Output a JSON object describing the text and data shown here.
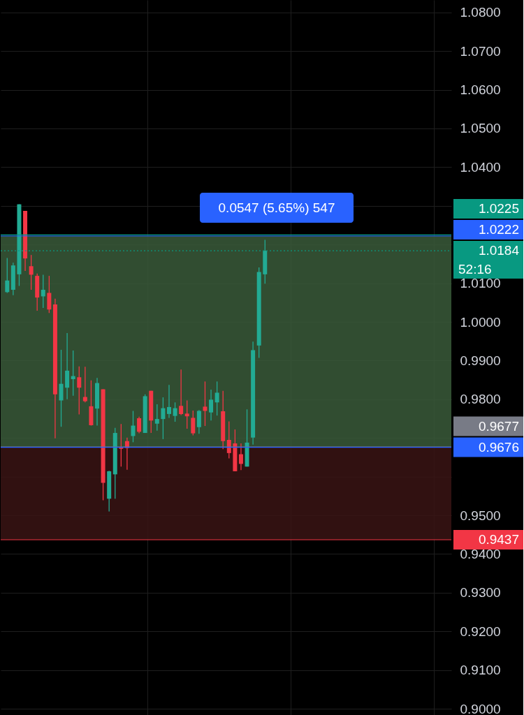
{
  "chart_data": {
    "type": "candlestick",
    "categories": [
      null,
      null,
      null,
      null,
      null,
      null,
      null,
      null,
      null,
      null,
      null,
      null,
      null,
      null,
      null,
      null,
      null,
      null,
      null,
      null,
      null,
      null,
      null,
      null,
      null,
      null,
      null,
      null,
      null,
      null,
      null,
      null,
      null,
      null,
      null,
      null,
      null,
      null,
      null,
      null,
      null,
      null,
      null,
      null,
      null,
      null,
      null,
      null,
      null,
      null,
      null,
      null,
      null,
      null,
      null,
      null,
      null,
      null,
      null,
      null,
      null,
      null,
      null,
      null,
      null,
      null,
      null,
      null,
      null,
      null,
      null,
      null,
      null,
      null
    ],
    "ohlc": [
      [
        1.0077,
        1.0165,
        1.0075,
        1.0107
      ],
      [
        1.0083,
        1.0153,
        1.0069,
        1.0146
      ],
      [
        1.0123,
        1.0304,
        1.0093,
        1.0304
      ],
      [
        1.0287,
        1.0287,
        1.0132,
        1.0164
      ],
      [
        1.0144,
        1.0173,
        1.0083,
        1.0122
      ],
      [
        1.0119,
        1.0125,
        1.0029,
        1.0063
      ],
      [
        1.0066,
        1.0122,
        1.0036,
        1.0083
      ],
      [
        1.0075,
        1.0119,
        1.0023,
        1.0032
      ],
      [
        1.0045,
        1.006,
        0.9699,
        0.9813
      ],
      [
        0.9797,
        0.9928,
        0.9729,
        0.984
      ],
      [
        0.983,
        0.9971,
        0.98,
        0.9874
      ],
      [
        0.9852,
        0.9926,
        0.9809,
        0.986
      ],
      [
        0.9857,
        0.9885,
        0.9761,
        0.983
      ],
      [
        0.9806,
        0.9884,
        0.9792,
        0.9795
      ],
      [
        0.9782,
        0.9849,
        0.9732,
        0.9733
      ],
      [
        0.9776,
        0.9855,
        0.9732,
        0.9842
      ],
      [
        0.9826,
        0.9826,
        0.9539,
        0.9584
      ],
      [
        0.9543,
        0.9615,
        0.951,
        0.9614
      ],
      [
        0.9606,
        0.9726,
        0.9543,
        0.9713
      ],
      [
        0.9675,
        0.9736,
        0.9626,
        0.9672
      ],
      [
        0.9692,
        0.9701,
        0.9618,
        0.9674
      ],
      [
        0.9705,
        0.977,
        0.9689,
        0.9732
      ],
      [
        0.9751,
        0.9755,
        0.9712,
        0.9716
      ],
      [
        0.9713,
        0.9813,
        0.9713,
        0.9808
      ],
      [
        0.9822,
        0.9822,
        0.9713,
        0.9745
      ],
      [
        0.9737,
        0.9787,
        0.9719,
        0.9749
      ],
      [
        0.9749,
        0.9805,
        0.9697,
        0.9777
      ],
      [
        0.9762,
        0.9837,
        0.9752,
        0.978
      ],
      [
        0.9757,
        0.9792,
        0.9742,
        0.9777
      ],
      [
        0.9783,
        0.9877,
        0.9759,
        0.9762
      ],
      [
        0.9763,
        0.9797,
        0.9724,
        0.9756
      ],
      [
        0.9752,
        0.9771,
        0.9707,
        0.9712
      ],
      [
        0.9728,
        0.9772,
        0.9711,
        0.977
      ],
      [
        0.9781,
        0.9846,
        0.9731,
        0.977
      ],
      [
        0.9766,
        0.9825,
        0.9745,
        0.9799
      ],
      [
        0.9792,
        0.9846,
        0.9758,
        0.9817
      ],
      [
        0.9769,
        0.9822,
        0.9671,
        0.9692
      ],
      [
        0.9695,
        0.9743,
        0.9647,
        0.9661
      ],
      [
        0.9686,
        0.9722,
        0.9614,
        0.9614
      ],
      [
        0.9658,
        0.9686,
        0.9617,
        0.9633
      ],
      [
        0.9626,
        0.9774,
        0.9626,
        0.9688
      ],
      [
        0.9701,
        0.9949,
        0.9683,
        0.9927
      ],
      [
        0.9939,
        1.0141,
        0.9907,
        1.0129
      ],
      [
        1.0123,
        1.0212,
        1.0099,
        1.0184
      ],
      null,
      null,
      null,
      null,
      null,
      null,
      null,
      null,
      null,
      null,
      null,
      null,
      null,
      null,
      null,
      null,
      null,
      null,
      null,
      null,
      null,
      null,
      null,
      null,
      null,
      null,
      null,
      null,
      null,
      null
    ],
    "colors": [
      "#22ab94",
      "#22ab94",
      "#22ab94",
      "#f23645",
      "#f23645",
      "#f23645",
      "#22ab94",
      "#f23645",
      "#f23645",
      "#22ab94",
      "#22ab94",
      "#22ab94",
      "#f23645",
      "#f23645",
      "#f23645",
      "#22ab94",
      "#f23645",
      "#22ab94",
      "#22ab94",
      "#f23645",
      "#f23645",
      "#22ab94",
      "#f23645",
      "#22ab94",
      "#f23645",
      "#22ab94",
      "#22ab94",
      "#22ab94",
      "#22ab94",
      "#f23645",
      "#f23645",
      "#f23645",
      "#22ab94",
      "#f23645",
      "#22ab94",
      "#22ab94",
      "#f23645",
      "#f23645",
      "#f23645",
      "#f23645",
      "#22ab94",
      "#22ab94",
      "#22ab94",
      "#22ab94",
      null,
      null,
      null,
      null,
      null,
      null,
      null,
      null,
      null,
      null,
      null,
      null,
      null,
      null,
      null,
      null,
      null,
      null,
      null,
      null,
      null,
      null,
      null,
      null,
      null,
      null,
      null,
      null,
      null,
      null
    ],
    "ylim": [
      0.8984,
      1.0832
    ],
    "yticks": [
      {
        "value": 0.9,
        "label": "0.9000"
      },
      {
        "value": 0.91,
        "label": "0.9100"
      },
      {
        "value": 0.92,
        "label": "0.9200"
      },
      {
        "value": 0.93,
        "label": "0.9300"
      },
      {
        "value": 0.94,
        "label": "0.9400"
      },
      {
        "value": 0.95,
        "label": "0.9500"
      },
      {
        "value": 0.96,
        "label": null
      },
      {
        "value": 0.97,
        "label": null
      },
      {
        "value": 0.98,
        "label": "0.9800"
      },
      {
        "value": 0.99,
        "label": "0.9900"
      },
      {
        "value": 1.0,
        "label": "1.0000"
      },
      {
        "value": 1.01,
        "label": "1.0100"
      },
      {
        "value": 1.02,
        "label": null
      },
      {
        "value": 1.03,
        "label": null
      },
      {
        "value": 1.04,
        "label": "1.0400"
      },
      {
        "value": 1.05,
        "label": "1.0500"
      },
      {
        "value": 1.06,
        "label": "1.0600"
      },
      {
        "value": 1.07,
        "label": "1.0700"
      },
      {
        "value": 1.08,
        "label": "1.0800"
      }
    ],
    "grid": true,
    "bands": [
      {
        "axis": "y",
        "from": 0.9677,
        "to": 1.0222,
        "color": "#3a5a3a"
      },
      {
        "axis": "y",
        "from": 0.9437,
        "to": 0.9677,
        "color": "#3a1414"
      }
    ],
    "ref_lines": [
      {
        "axis": "y",
        "value": 1.0225,
        "label": "1.0225",
        "color": "#089981"
      },
      {
        "axis": "y",
        "value": 1.0222,
        "label": "1.0222",
        "color": "#2962ff"
      },
      {
        "axis": "y",
        "value": 1.0184,
        "label": "1.0184",
        "color": "#089981",
        "line_style": "dotted"
      },
      {
        "axis": "y",
        "value": 0.9677,
        "label": "0.9677",
        "color": "#787b86"
      },
      {
        "axis": "y",
        "value": 0.9676,
        "label": "0.9676",
        "color": "#2962ff"
      },
      {
        "axis": "y",
        "value": 0.9437,
        "label": "0.9437",
        "color": "#f23645"
      }
    ],
    "annotations": [
      "0.0547 (5.65%) 547",
      "52:16"
    ]
  }
}
